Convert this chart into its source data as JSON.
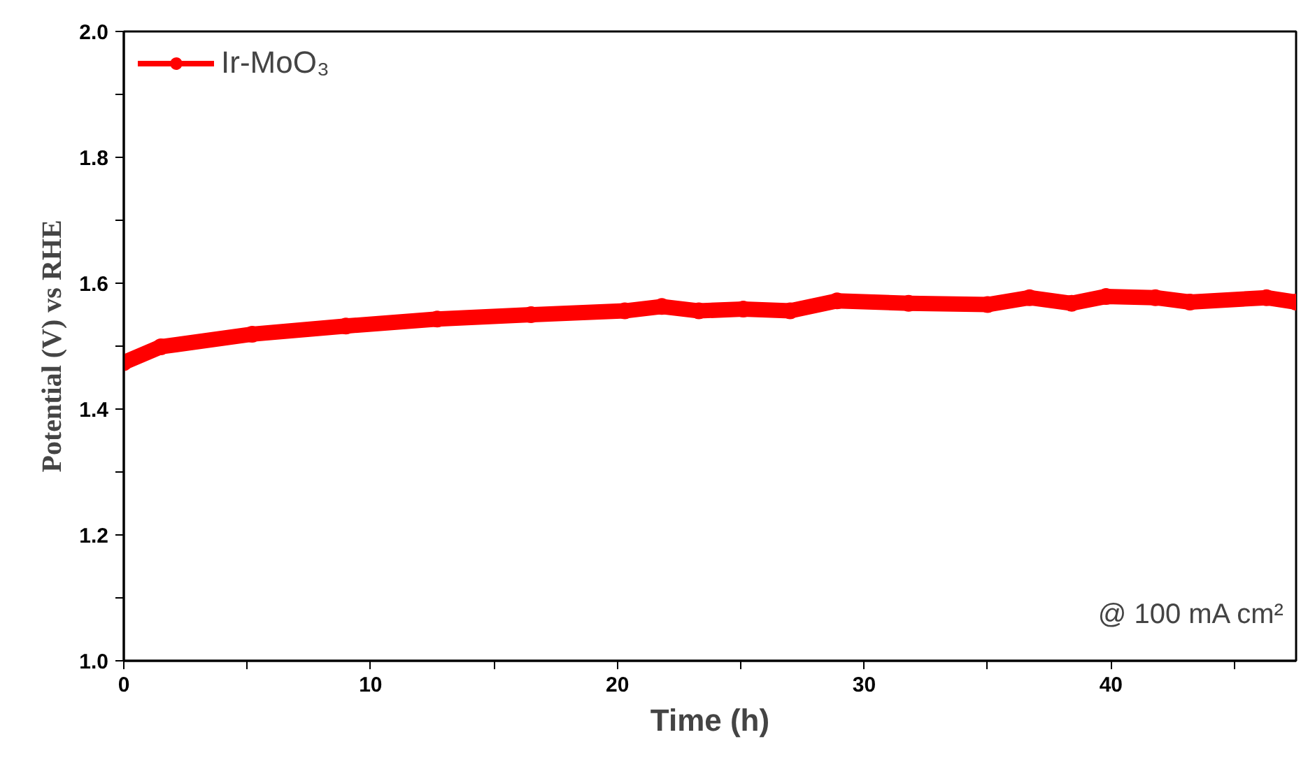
{
  "chart_data": {
    "type": "line",
    "xlabel": "Time (h)",
    "ylabel": "Potential (V) vs RHE",
    "x": [
      0,
      1.5,
      5.2,
      9.0,
      12.7,
      16.5,
      20.3,
      21.8,
      23.3,
      25.1,
      27.0,
      28.9,
      31.8,
      35.0,
      36.7,
      38.4,
      39.8,
      41.8,
      43.2,
      46.3,
      47.5
    ],
    "series": [
      {
        "name": "Ir-MoO₃",
        "color": "#ff0000",
        "values": [
          1.474,
          1.499,
          1.519,
          1.532,
          1.543,
          1.55,
          1.556,
          1.563,
          1.556,
          1.559,
          1.556,
          1.572,
          1.568,
          1.566,
          1.577,
          1.568,
          1.579,
          1.577,
          1.57,
          1.577,
          1.57
        ]
      }
    ],
    "xlim": [
      0,
      47.5
    ],
    "ylim": [
      1.0,
      2.0
    ],
    "xticks": [
      0,
      {
        "value": 5,
        "label": null
      },
      10,
      {
        "value": 15,
        "label": null
      },
      20,
      {
        "value": 25,
        "label": null
      },
      30,
      {
        "value": 35,
        "label": null
      },
      40,
      {
        "value": 45,
        "label": null
      }
    ],
    "yticks": [
      {
        "value": 1.0,
        "label": "1.0"
      },
      {
        "value": 1.1,
        "label": null
      },
      {
        "value": 1.2,
        "label": "1.2"
      },
      {
        "value": 1.3,
        "label": null
      },
      {
        "value": 1.4,
        "label": "1.4"
      },
      {
        "value": 1.5,
        "label": null
      },
      {
        "value": 1.6,
        "label": "1.6"
      },
      {
        "value": 1.7,
        "label": null
      },
      {
        "value": 1.8,
        "label": "1.8"
      },
      {
        "value": 1.9,
        "label": null
      },
      {
        "value": 2.0,
        "label": "2.0"
      }
    ],
    "annotations": [
      "@ 100 mA cm²"
    ],
    "legend": "top left",
    "marker": "circle",
    "line_style": "solid",
    "grid": false
  }
}
